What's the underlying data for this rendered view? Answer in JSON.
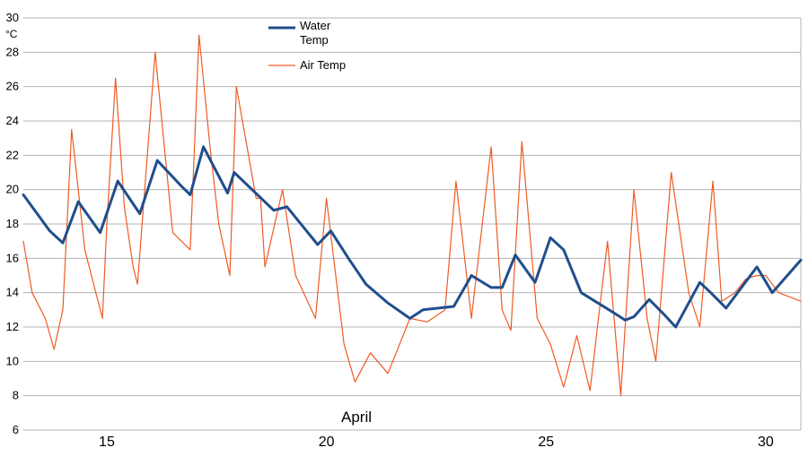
{
  "chart_data": {
    "type": "line",
    "title": "",
    "xlabel": "April",
    "ylabel": "°C",
    "xlim": [
      13.1,
      30.8
    ],
    "ylim": [
      6,
      30
    ],
    "yticks": [
      6,
      8,
      10,
      12,
      14,
      16,
      18,
      20,
      22,
      24,
      26,
      28,
      30
    ],
    "xticks": [
      15,
      20,
      25,
      30
    ],
    "grid": true,
    "legend_position": "top-center",
    "colors": {
      "water": "#1f4e8c",
      "air": "#f15a24",
      "grid": "#b3b3b3"
    },
    "series": [
      {
        "name": "Water Temp",
        "x": [
          13.1,
          13.7,
          14.0,
          14.35,
          14.85,
          15.25,
          15.75,
          16.15,
          16.7,
          16.9,
          17.2,
          17.75,
          17.9,
          18.8,
          19.1,
          19.8,
          20.1,
          20.5,
          20.9,
          21.4,
          21.9,
          22.2,
          22.9,
          23.3,
          23.75,
          24.0,
          24.3,
          24.75,
          25.1,
          25.4,
          25.8,
          26.5,
          26.8,
          27.0,
          27.35,
          27.7,
          27.95,
          28.5,
          28.75,
          29.1,
          29.8,
          30.15,
          30.8
        ],
        "values": [
          19.7,
          17.6,
          16.9,
          19.3,
          17.5,
          20.5,
          18.6,
          21.7,
          20.2,
          19.7,
          22.5,
          19.8,
          21.0,
          18.8,
          19.0,
          16.8,
          17.6,
          16.0,
          14.5,
          13.4,
          12.5,
          13.0,
          13.2,
          15.0,
          14.3,
          14.3,
          16.2,
          14.6,
          17.2,
          16.5,
          14.0,
          12.9,
          12.4,
          12.6,
          13.6,
          12.7,
          12.0,
          14.6,
          14.0,
          13.1,
          15.5,
          14.0,
          15.9
        ]
      },
      {
        "name": "Air Temp",
        "x": [
          13.1,
          13.3,
          13.6,
          13.8,
          14.0,
          14.2,
          14.5,
          14.7,
          14.9,
          15.0,
          15.2,
          15.4,
          15.6,
          15.7,
          16.1,
          16.5,
          16.9,
          17.1,
          17.35,
          17.55,
          17.8,
          17.95,
          18.4,
          18.5,
          18.6,
          19.0,
          19.3,
          19.75,
          20.0,
          20.4,
          20.65,
          21.0,
          21.4,
          21.9,
          22.3,
          22.7,
          22.95,
          23.3,
          23.75,
          24.0,
          24.2,
          24.45,
          24.8,
          25.1,
          25.4,
          25.7,
          26.0,
          26.4,
          26.7,
          27.0,
          27.3,
          27.5,
          27.85,
          28.25,
          28.5,
          28.8,
          29.0,
          29.3,
          29.55,
          29.8,
          30.0,
          30.3,
          30.8
        ],
        "values": [
          17.0,
          14.0,
          12.5,
          10.7,
          13.0,
          23.5,
          16.5,
          14.5,
          12.5,
          18.0,
          26.5,
          19.0,
          15.5,
          14.5,
          28.0,
          17.5,
          16.5,
          29.0,
          22.5,
          18.0,
          15.0,
          26.0,
          19.5,
          19.5,
          15.5,
          20.0,
          15.0,
          12.5,
          19.5,
          11.0,
          8.8,
          10.5,
          9.3,
          12.5,
          12.3,
          13.0,
          20.5,
          12.5,
          22.5,
          13.0,
          11.8,
          22.8,
          12.5,
          11.0,
          8.5,
          11.5,
          8.3,
          17.0,
          8.0,
          20.0,
          12.5,
          10.0,
          21.0,
          14.0,
          12.0,
          20.5,
          13.5,
          14.0,
          14.8,
          15.0,
          15.0,
          14.0,
          13.5
        ]
      }
    ]
  }
}
